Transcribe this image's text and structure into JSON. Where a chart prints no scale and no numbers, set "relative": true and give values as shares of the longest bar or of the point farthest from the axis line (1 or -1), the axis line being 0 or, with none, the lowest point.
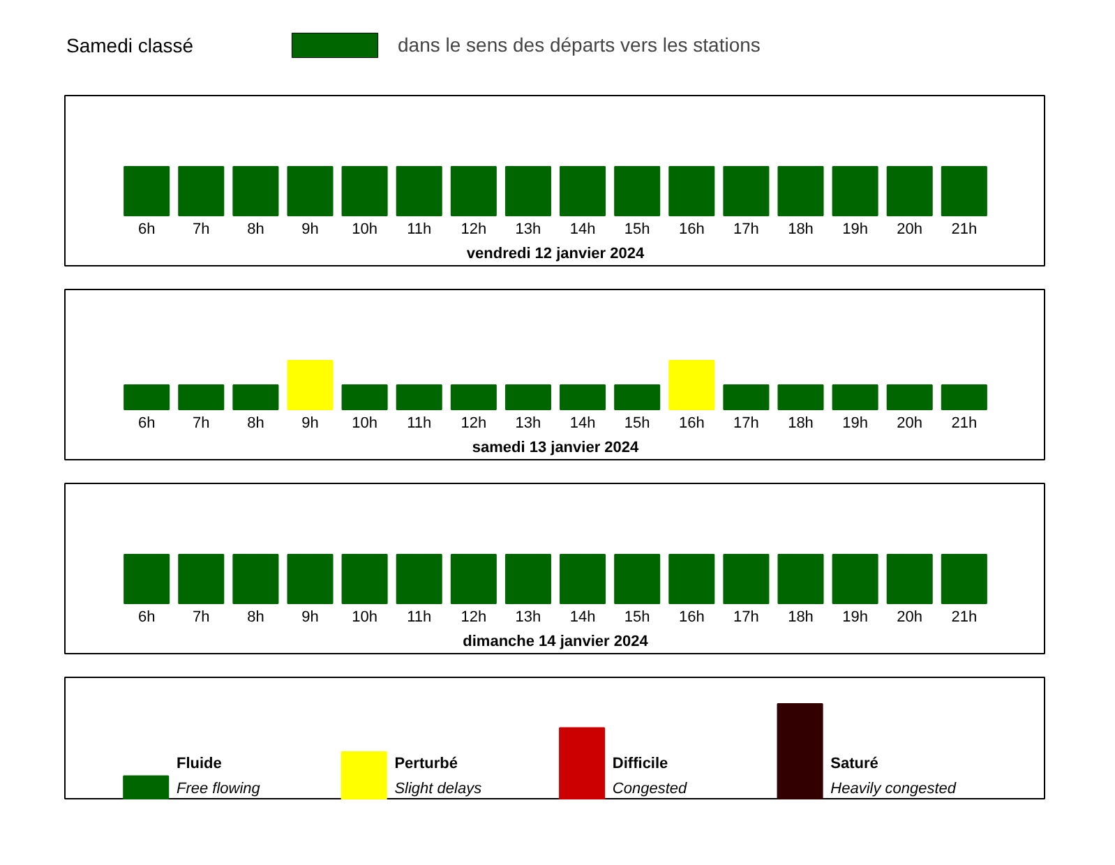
{
  "chart_data": [
    {
      "type": "other",
      "title": "Samedi classé",
      "legend": "top",
      "series": [
        {
          "name": "dans le sens des départs vers les stations",
          "color": "#006600"
        }
      ]
    },
    {
      "type": "bar",
      "relative": true,
      "xlabel": "vendredi 12 janvier 2024",
      "categories": [
        "6h",
        "7h",
        "8h",
        "9h",
        "10h",
        "11h",
        "12h",
        "13h",
        "14h",
        "15h",
        "16h",
        "17h",
        "18h",
        "19h",
        "20h",
        "21h"
      ],
      "values": [
        1,
        1,
        1,
        1,
        1,
        1,
        1,
        1,
        1,
        1,
        1,
        1,
        1,
        1,
        1,
        1
      ],
      "colors": [
        "#006600",
        "#006600",
        "#006600",
        "#006600",
        "#006600",
        "#006600",
        "#006600",
        "#006600",
        "#006600",
        "#006600",
        "#006600",
        "#006600",
        "#006600",
        "#006600",
        "#006600",
        "#006600"
      ]
    },
    {
      "type": "bar",
      "relative": true,
      "xlabel": "samedi 13 janvier 2024",
      "categories": [
        "6h",
        "7h",
        "8h",
        "9h",
        "10h",
        "11h",
        "12h",
        "13h",
        "14h",
        "15h",
        "16h",
        "17h",
        "18h",
        "19h",
        "20h",
        "21h"
      ],
      "values": [
        0.5,
        0.5,
        0.5,
        1,
        0.5,
        0.5,
        0.5,
        0.5,
        0.5,
        0.5,
        1,
        0.5,
        0.5,
        0.5,
        0.5,
        0.5
      ],
      "colors": [
        "#006600",
        "#006600",
        "#006600",
        "#ffff00",
        "#006600",
        "#006600",
        "#006600",
        "#006600",
        "#006600",
        "#006600",
        "#ffff00",
        "#006600",
        "#006600",
        "#006600",
        "#006600",
        "#006600"
      ]
    },
    {
      "type": "bar",
      "relative": true,
      "xlabel": "dimanche 14 janvier 2024",
      "categories": [
        "6h",
        "7h",
        "8h",
        "9h",
        "10h",
        "11h",
        "12h",
        "13h",
        "14h",
        "15h",
        "16h",
        "17h",
        "18h",
        "19h",
        "20h",
        "21h"
      ],
      "values": [
        1,
        1,
        1,
        1,
        1,
        1,
        1,
        1,
        1,
        1,
        1,
        1,
        1,
        1,
        1,
        1
      ],
      "colors": [
        "#006600",
        "#006600",
        "#006600",
        "#006600",
        "#006600",
        "#006600",
        "#006600",
        "#006600",
        "#006600",
        "#006600",
        "#006600",
        "#006600",
        "#006600",
        "#006600",
        "#006600",
        "#006600"
      ]
    },
    {
      "type": "bar",
      "relative": true,
      "categories": [
        "Fluide",
        "Perturbé",
        "Difficile",
        "Saturé"
      ],
      "values": [
        0.25,
        0.5,
        0.75,
        1
      ],
      "colors": [
        "#006600",
        "#ffff00",
        "#cc0000",
        "#330000"
      ],
      "annotations": [
        "Free flowing",
        "Slight delays",
        "Congested",
        "Heavily congested"
      ]
    }
  ]
}
